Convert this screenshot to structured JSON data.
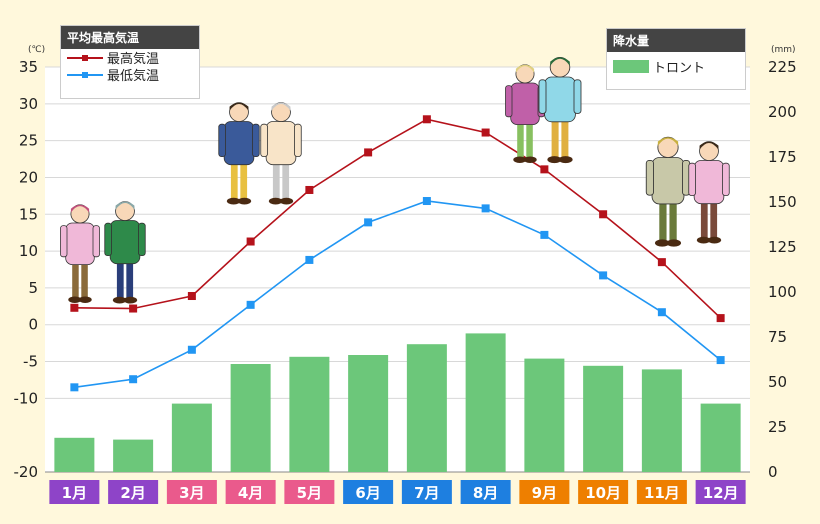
{
  "chart_data": {
    "type": "bar+line",
    "categories": [
      "1月",
      "2月",
      "3月",
      "4月",
      "5月",
      "6月",
      "7月",
      "8月",
      "9月",
      "10月",
      "11月",
      "12月"
    ],
    "month_colors": [
      "#8e44c8",
      "#8e44c8",
      "#ea5a8c",
      "#ea5a8c",
      "#ea5a8c",
      "#1e7fe0",
      "#1e7fe0",
      "#1e7fe0",
      "#ee7f00",
      "#ee7f00",
      "#ee7f00",
      "#8e44c8"
    ],
    "left_axis": {
      "unit": "(℃)",
      "min": -20,
      "max": 35,
      "ticks": [
        "35",
        "30",
        "25",
        "20",
        "15",
        "10",
        "5",
        "0",
        "-5",
        "-10",
        "-20"
      ],
      "tick_values": [
        35,
        30,
        25,
        20,
        15,
        10,
        5,
        0,
        -5,
        -10,
        -20
      ]
    },
    "right_axis": {
      "unit": "(mm)",
      "min": 0,
      "max": 225,
      "ticks": [
        "225",
        "200",
        "175",
        "150",
        "125",
        "100",
        "75",
        "50",
        "25",
        "0"
      ],
      "tick_values": [
        225,
        200,
        175,
        150,
        125,
        100,
        75,
        50,
        25,
        0
      ]
    },
    "series": [
      {
        "name": "最高気温",
        "kind": "line",
        "axis": "left",
        "color": "#b5121b",
        "values": [
          2.3,
          2.2,
          3.9,
          11.3,
          18.3,
          23.4,
          27.9,
          26.1,
          21.1,
          15.0,
          8.5,
          0.9
        ]
      },
      {
        "name": "最低気温",
        "kind": "line",
        "axis": "left",
        "color": "#2196f3",
        "values": [
          -8.5,
          -7.4,
          -3.4,
          2.7,
          8.8,
          13.9,
          16.8,
          15.8,
          12.2,
          6.7,
          1.7,
          -4.8
        ]
      },
      {
        "name": "トロント",
        "kind": "bar",
        "axis": "right",
        "color": "#6cc77a",
        "values": [
          19,
          18,
          38,
          60,
          64,
          65,
          71,
          77,
          63,
          59,
          57,
          38
        ]
      }
    ],
    "grid": true
  },
  "legend_temp": {
    "title": "平均最高気温",
    "items": [
      "最高気温",
      "最低気温"
    ]
  },
  "legend_rain": {
    "title": "降水量",
    "items": [
      "トロント"
    ]
  }
}
